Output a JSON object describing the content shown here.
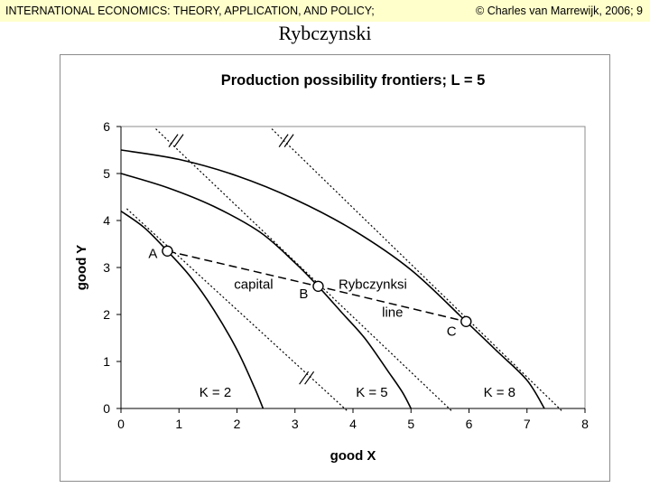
{
  "header": {
    "left": "INTERNATIONAL ECONOMICS: THEORY, APPLICATION, AND POLICY;",
    "right": "© Charles van Marrewijk, 2006; 9"
  },
  "slide_title": "Rybczynski",
  "chart_data": {
    "type": "line",
    "title": "Production possibility frontiers; L = 5",
    "xlabel": "good X",
    "ylabel": "good Y",
    "xlim": [
      0,
      8
    ],
    "ylim": [
      0,
      6
    ],
    "xticks": [
      "0",
      "1",
      "2",
      "3",
      "4",
      "5",
      "6",
      "7",
      "8"
    ],
    "yticks": [
      "0",
      "1",
      "2",
      "3",
      "4",
      "5",
      "6"
    ],
    "grid": false,
    "series": [
      {
        "name": "K = 2",
        "points": [
          [
            0,
            4.2
          ],
          [
            0.4,
            3.85
          ],
          [
            0.8,
            3.35
          ],
          [
            1.2,
            2.8
          ],
          [
            1.6,
            2.1
          ],
          [
            2.0,
            1.25
          ],
          [
            2.3,
            0.45
          ],
          [
            2.45,
            0
          ]
        ]
      },
      {
        "name": "K = 5",
        "points": [
          [
            0,
            5.0
          ],
          [
            0.8,
            4.7
          ],
          [
            1.6,
            4.3
          ],
          [
            2.4,
            3.75
          ],
          [
            3.0,
            3.1
          ],
          [
            3.4,
            2.6
          ],
          [
            3.8,
            2.05
          ],
          [
            4.2,
            1.5
          ],
          [
            4.6,
            0.8
          ],
          [
            4.85,
            0.35
          ],
          [
            5.0,
            0
          ]
        ]
      },
      {
        "name": "K = 8",
        "points": [
          [
            0,
            5.5
          ],
          [
            1.0,
            5.3
          ],
          [
            2.0,
            4.95
          ],
          [
            3.0,
            4.45
          ],
          [
            4.0,
            3.8
          ],
          [
            5.0,
            2.95
          ],
          [
            5.95,
            1.85
          ],
          [
            6.5,
            1.2
          ],
          [
            7.0,
            0.6
          ],
          [
            7.3,
            0
          ]
        ]
      }
    ],
    "tangent_lines": [
      {
        "from": [
          0.1,
          4.25
        ],
        "to": [
          3.9,
          -0.05
        ],
        "style": "dotted"
      },
      {
        "from": [
          0.6,
          5.95
        ],
        "to": [
          5.7,
          -0.05
        ],
        "style": "dotted"
      },
      {
        "from": [
          2.6,
          5.95
        ],
        "to": [
          7.6,
          -0.05
        ],
        "style": "dotted"
      }
    ],
    "parallel_marks_at": [
      [
        0.95,
        5.7
      ],
      [
        2.85,
        5.7
      ],
      [
        3.2,
        0.65
      ]
    ],
    "rybczynski_line": [
      [
        0.8,
        3.35
      ],
      [
        3.4,
        2.6
      ],
      [
        5.95,
        1.85
      ]
    ],
    "points": [
      {
        "label": "A",
        "x": 0.8,
        "y": 3.35,
        "label_x": 0.55,
        "label_y": 3.2
      },
      {
        "label": "B",
        "x": 3.4,
        "y": 2.6,
        "label_x": 3.15,
        "label_y": 2.35
      },
      {
        "label": "C",
        "x": 5.95,
        "y": 1.85,
        "label_x": 5.7,
        "label_y": 1.55
      }
    ],
    "annotations": [
      {
        "text": "capital",
        "x": 1.95,
        "y": 2.55
      },
      {
        "text": "Rybczynksi",
        "x": 3.75,
        "y": 2.55
      },
      {
        "text": "line",
        "x": 4.5,
        "y": 1.95
      },
      {
        "text": "K = 2",
        "x": 1.35,
        "y": 0.25
      },
      {
        "text": "K = 5",
        "x": 4.05,
        "y": 0.25
      },
      {
        "text": "K = 8",
        "x": 6.25,
        "y": 0.25
      }
    ]
  }
}
